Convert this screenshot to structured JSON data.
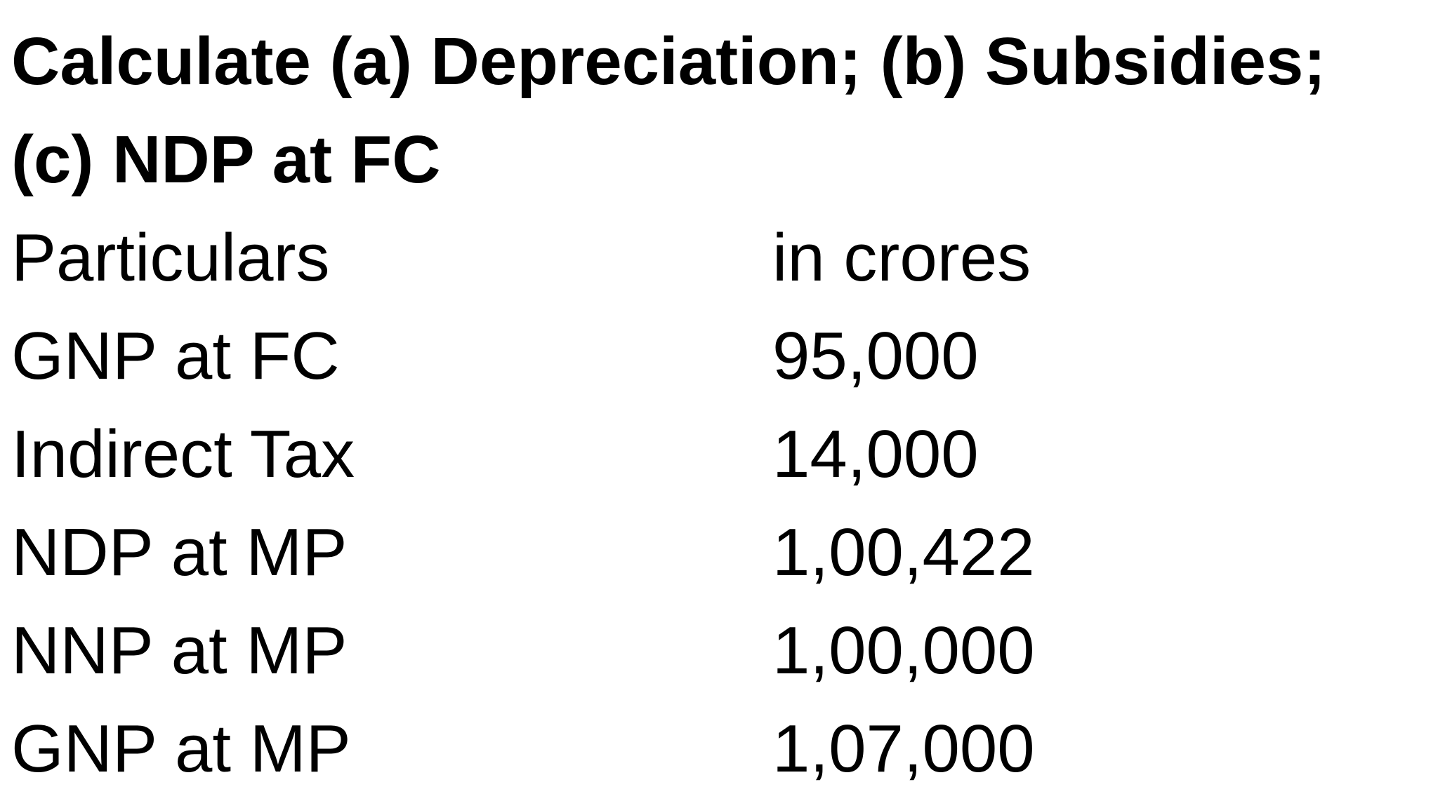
{
  "question": {
    "line1": "Calculate (a) Depreciation; (b) Subsidies;",
    "line2": "(c) NDP at FC"
  },
  "table": {
    "header": {
      "label": "Particulars",
      "value": "in crores"
    },
    "rows": [
      {
        "label": "GNP at FC",
        "value": "95,000"
      },
      {
        "label": "Indirect Tax",
        "value": "14,000"
      },
      {
        "label": "NDP at MP",
        "value": "1,00,422"
      },
      {
        "label": "NNP at MP",
        "value": "1,00,000"
      },
      {
        "label": "GNP at MP",
        "value": "1,07,000"
      }
    ]
  }
}
